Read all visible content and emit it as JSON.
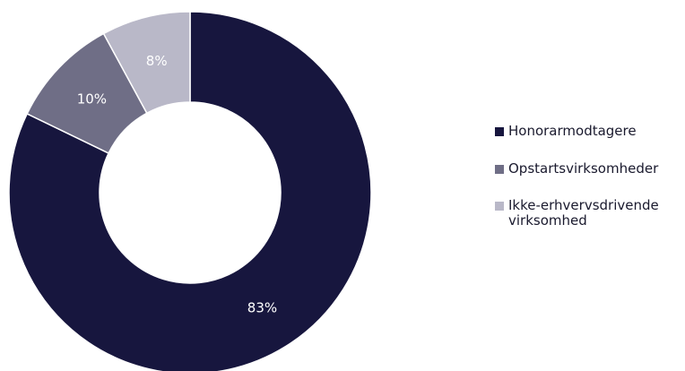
{
  "chart_data": {
    "type": "pie",
    "donut": true,
    "title": "",
    "legend_position": "right",
    "series": [
      {
        "name": "Honorarmodtagere",
        "value": 83,
        "label": "83%",
        "color": "#17163e"
      },
      {
        "name": "Opstartsvirksomheder",
        "value": 10,
        "label": "10%",
        "color": "#6f6e86"
      },
      {
        "name": "Ikke-erhvervsdrivende virksomhed",
        "value": 8,
        "label": "8%",
        "color": "#b9b8c8"
      }
    ]
  }
}
